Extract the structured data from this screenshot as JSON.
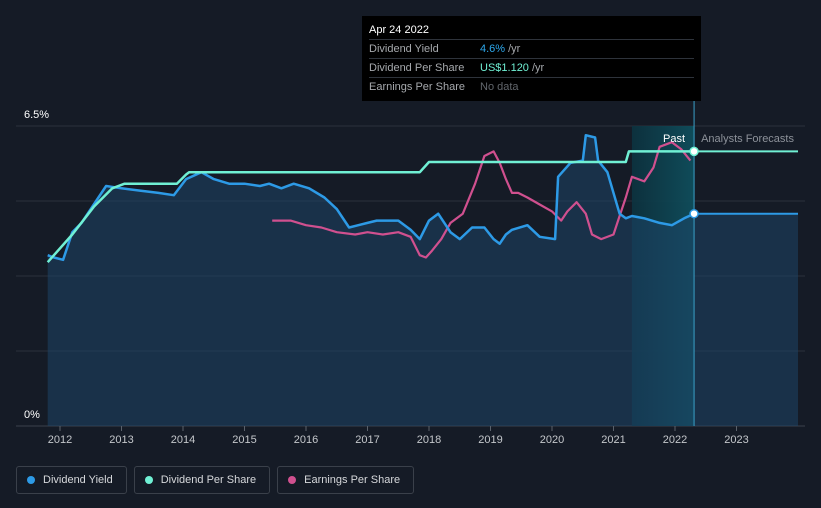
{
  "chart_data": {
    "type": "line",
    "title": "",
    "ylabel": "",
    "y_ticks": [
      "0%",
      "6.5%"
    ],
    "ylim": [
      0,
      6.5
    ],
    "xlim": [
      2011.5,
      2024.0
    ],
    "x_ticks": [
      2012,
      2013,
      2014,
      2015,
      2016,
      2017,
      2018,
      2019,
      2020,
      2021,
      2022,
      2023
    ],
    "x_tick_labels": [
      "2012",
      "2013",
      "2014",
      "2015",
      "2016",
      "2017",
      "2018",
      "2019",
      "2020",
      "2021",
      "2022",
      "2023"
    ],
    "past_label": "Past",
    "forecast_label": "Analysts Forecasts",
    "forecast_region": [
      2021.3,
      2022.31
    ],
    "series": [
      {
        "name": "Dividend Yield",
        "color": "#2d9ae6",
        "unit": "%",
        "x": [
          2011.8,
          2011.9,
          2012.05,
          2012.2,
          2012.35,
          2012.55,
          2012.75,
          2013.0,
          2013.3,
          2013.6,
          2013.85,
          2014.05,
          2014.3,
          2014.5,
          2014.75,
          2015.0,
          2015.25,
          2015.4,
          2015.6,
          2015.8,
          2016.05,
          2016.3,
          2016.5,
          2016.7,
          2016.85,
          2017.0,
          2017.15,
          2017.3,
          2017.5,
          2017.7,
          2017.85,
          2018.0,
          2018.15,
          2018.35,
          2018.5,
          2018.7,
          2018.9,
          2019.05,
          2019.15,
          2019.25,
          2019.35,
          2019.6,
          2019.8,
          2020.05,
          2020.1,
          2020.3,
          2020.5,
          2020.55,
          2020.7,
          2020.75,
          2020.9,
          2021.1,
          2021.2,
          2021.3,
          2021.5,
          2021.75,
          2021.95,
          2022.15,
          2022.31,
          2022.6,
          2023.0,
          2023.5,
          2024.0
        ],
        "y": [
          3.7,
          3.65,
          3.6,
          4.2,
          4.4,
          4.8,
          5.2,
          5.15,
          5.1,
          5.05,
          5.0,
          5.35,
          5.5,
          5.35,
          5.25,
          5.25,
          5.2,
          5.25,
          5.15,
          5.25,
          5.15,
          4.95,
          4.7,
          4.3,
          4.35,
          4.4,
          4.45,
          4.45,
          4.45,
          4.25,
          4.05,
          4.45,
          4.6,
          4.2,
          4.05,
          4.3,
          4.3,
          4.05,
          3.95,
          4.15,
          4.25,
          4.35,
          4.1,
          4.05,
          5.4,
          5.7,
          5.75,
          6.3,
          6.25,
          5.75,
          5.5,
          4.6,
          4.5,
          4.55,
          4.5,
          4.4,
          4.35,
          4.5,
          4.6,
          4.6,
          4.6,
          4.6,
          4.6
        ]
      },
      {
        "name": "Dividend Per Share",
        "color": "#70f0d4",
        "unit": "US$",
        "x": [
          2011.8,
          2012.2,
          2012.55,
          2012.85,
          2013.05,
          2013.5,
          2013.9,
          2014.05,
          2014.1,
          2014.5,
          2015.0,
          2015.5,
          2016.0,
          2016.5,
          2017.0,
          2017.5,
          2017.85,
          2018.0,
          2018.05,
          2018.5,
          2019.0,
          2019.5,
          2020.0,
          2020.5,
          2021.0,
          2021.2,
          2021.25,
          2021.5,
          2022.0,
          2022.31,
          2022.6,
          2023.0,
          2023.5,
          2024.0
        ],
        "y": [
          3.55,
          4.15,
          4.75,
          5.15,
          5.25,
          5.25,
          5.25,
          5.45,
          5.5,
          5.5,
          5.5,
          5.5,
          5.5,
          5.5,
          5.5,
          5.5,
          5.5,
          5.72,
          5.72,
          5.72,
          5.72,
          5.72,
          5.72,
          5.72,
          5.72,
          5.72,
          5.95,
          5.95,
          5.95,
          5.95,
          5.95,
          5.95,
          5.95,
          5.95
        ]
      },
      {
        "name": "Earnings Per Share",
        "color": "#d0508f",
        "unit": "",
        "x": [
          2015.45,
          2015.75,
          2016.0,
          2016.25,
          2016.5,
          2016.8,
          2017.0,
          2017.25,
          2017.5,
          2017.7,
          2017.85,
          2017.95,
          2018.05,
          2018.2,
          2018.35,
          2018.55,
          2018.75,
          2018.9,
          2019.05,
          2019.15,
          2019.25,
          2019.35,
          2019.45,
          2019.6,
          2019.8,
          2020.0,
          2020.15,
          2020.25,
          2020.4,
          2020.55,
          2020.65,
          2020.8,
          2021.0,
          2021.1,
          2021.2,
          2021.3,
          2021.5,
          2021.65,
          2021.75,
          2021.95,
          2022.1,
          2022.25
        ],
        "y": [
          4.45,
          4.45,
          4.35,
          4.3,
          4.2,
          4.15,
          4.2,
          4.15,
          4.2,
          4.1,
          3.7,
          3.65,
          3.8,
          4.05,
          4.4,
          4.6,
          5.25,
          5.85,
          5.95,
          5.7,
          5.35,
          5.05,
          5.05,
          4.95,
          4.8,
          4.65,
          4.45,
          4.65,
          4.85,
          4.6,
          4.15,
          4.05,
          4.15,
          4.55,
          4.95,
          5.4,
          5.3,
          5.6,
          6.05,
          6.15,
          6.0,
          5.75
        ]
      }
    ],
    "tooltip": {
      "date": "Apr 24 2022",
      "rows": [
        {
          "label": "Dividend Yield",
          "value": "4.6%",
          "unit": "/yr"
        },
        {
          "label": "Dividend Per Share",
          "value": "US$1.120",
          "unit": "/yr"
        },
        {
          "label": "Earnings Per Share",
          "value": "No data",
          "unit": ""
        }
      ]
    },
    "legend": [
      "Dividend Yield",
      "Dividend Per Share",
      "Earnings Per Share"
    ]
  },
  "colors": {
    "background": "#151b26",
    "dividend_yield": "#2d9ae6",
    "dividend_per_share": "#70f0d4",
    "earnings_per_share": "#d0508f",
    "forecast_band": "#0f3b4a"
  }
}
